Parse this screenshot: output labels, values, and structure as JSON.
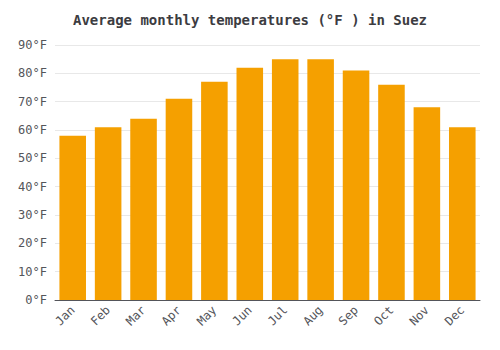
{
  "chart_data": {
    "type": "bar",
    "title": "Average monthly temperatures (°F ) in Suez",
    "categories": [
      "Jan",
      "Feb",
      "Mar",
      "Apr",
      "May",
      "Jun",
      "Jul",
      "Aug",
      "Sep",
      "Oct",
      "Nov",
      "Dec"
    ],
    "values": [
      58,
      61,
      64,
      71,
      77,
      82,
      85,
      85,
      81,
      76,
      68,
      61
    ],
    "color": "#F5A000",
    "ylim": [
      0,
      90
    ],
    "yticks": [
      {
        "value": 0,
        "label": "0°F"
      },
      {
        "value": 10,
        "label": "10°F"
      },
      {
        "value": 20,
        "label": "20°F"
      },
      {
        "value": 30,
        "label": "30°F"
      },
      {
        "value": 40,
        "label": "40°F"
      },
      {
        "value": 50,
        "label": "50°F"
      },
      {
        "value": 60,
        "label": "60°F"
      },
      {
        "value": 70,
        "label": "70°F"
      },
      {
        "value": 80,
        "label": "80°F"
      },
      {
        "value": 90,
        "label": "90°F"
      }
    ],
    "grid": true
  }
}
